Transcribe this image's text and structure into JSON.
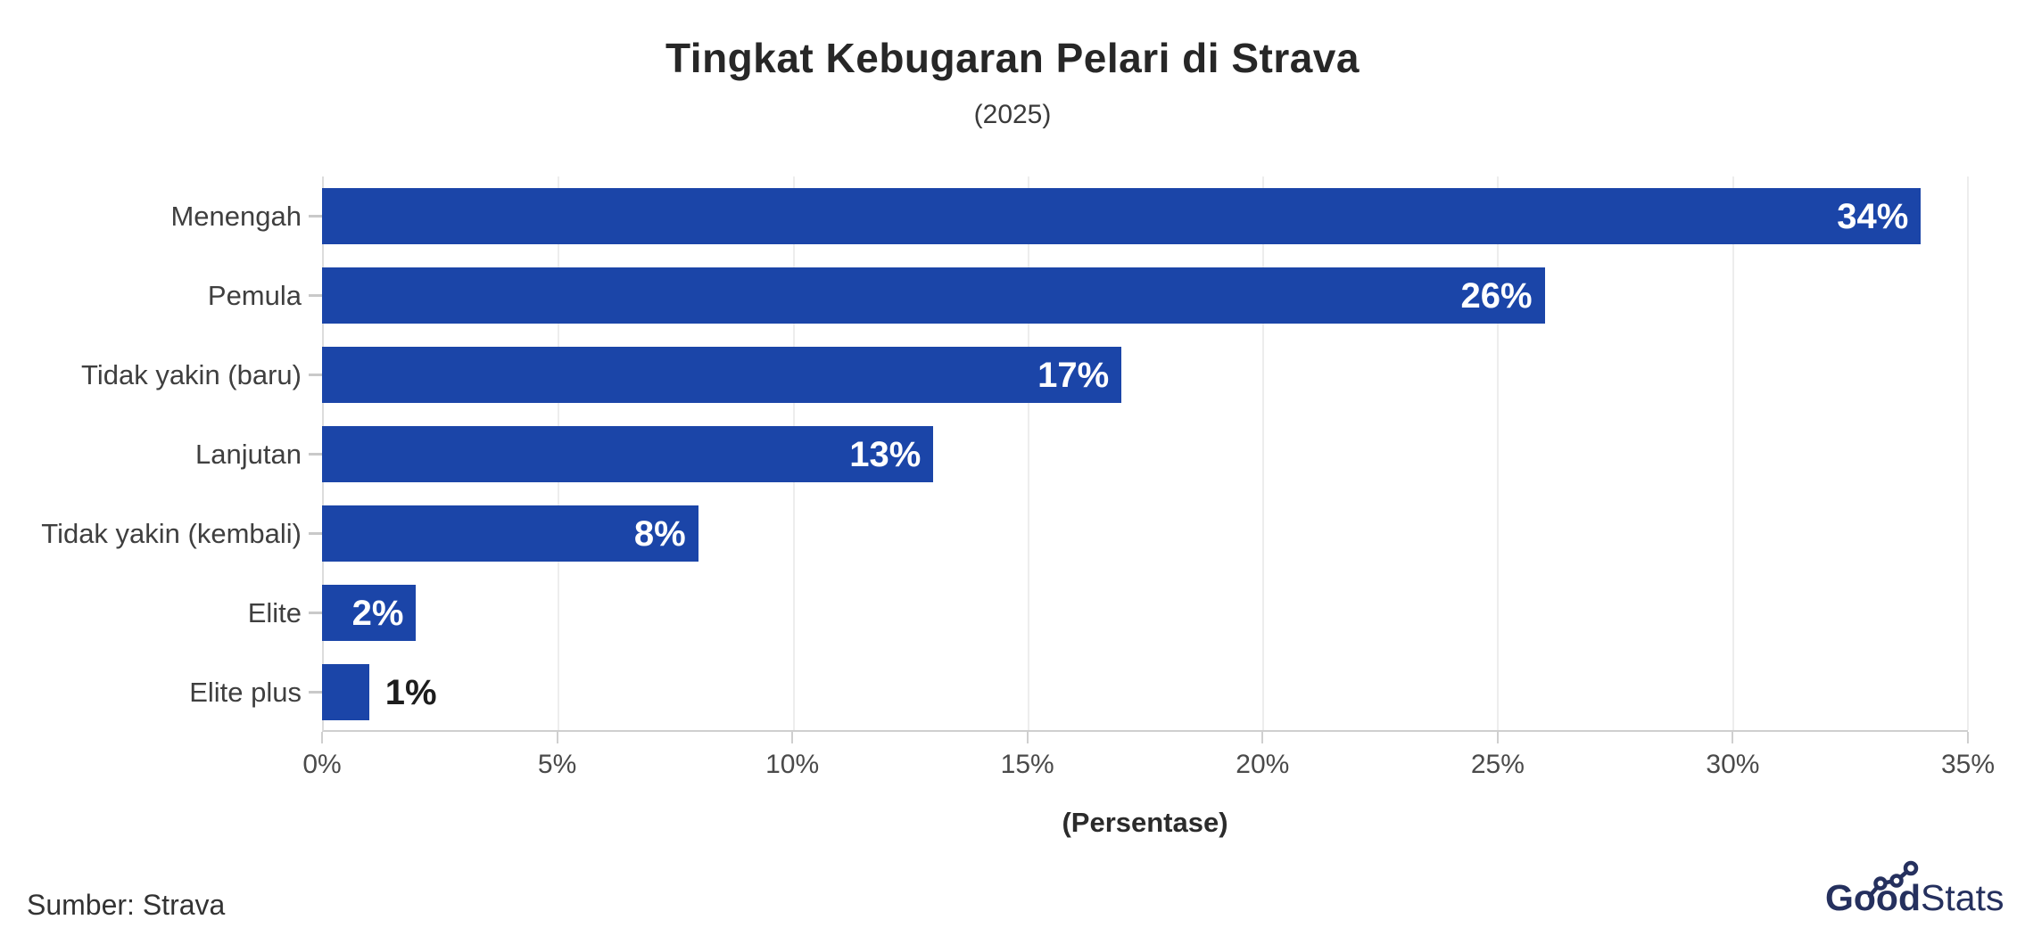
{
  "chart_data": {
    "type": "bar",
    "orientation": "horizontal",
    "title": "Tingkat Kebugaran Pelari di Strava",
    "subtitle": "(2025)",
    "categories": [
      "Menengah",
      "Pemula",
      "Tidak yakin (baru)",
      "Lanjutan",
      "Tidak yakin (kembali)",
      "Elite",
      "Elite plus"
    ],
    "values": [
      34,
      26,
      17,
      13,
      8,
      2,
      1
    ],
    "value_labels": [
      "34%",
      "26%",
      "17%",
      "13%",
      "8%",
      "2%",
      "1%"
    ],
    "xlabel": "(Persentase)",
    "ylabel": "",
    "xlim": [
      0,
      35
    ],
    "xticks": [
      0,
      5,
      10,
      15,
      20,
      25,
      30,
      35
    ],
    "xtick_labels": [
      "0%",
      "5%",
      "10%",
      "15%",
      "20%",
      "25%",
      "30%",
      "35%"
    ],
    "grid": "vertical light gridlines",
    "legend": "none",
    "bar_color": "#1b45a8",
    "value_label_color_inside": "#ffffff",
    "value_label_color_outside": "#1d1d1d",
    "label_inside_min": 2
  },
  "footer": {
    "source": "Sumber: Strava",
    "brand": {
      "bold": "Good",
      "light": "Stats",
      "color": "#25305e",
      "icon": "trend-line-with-dots"
    }
  }
}
